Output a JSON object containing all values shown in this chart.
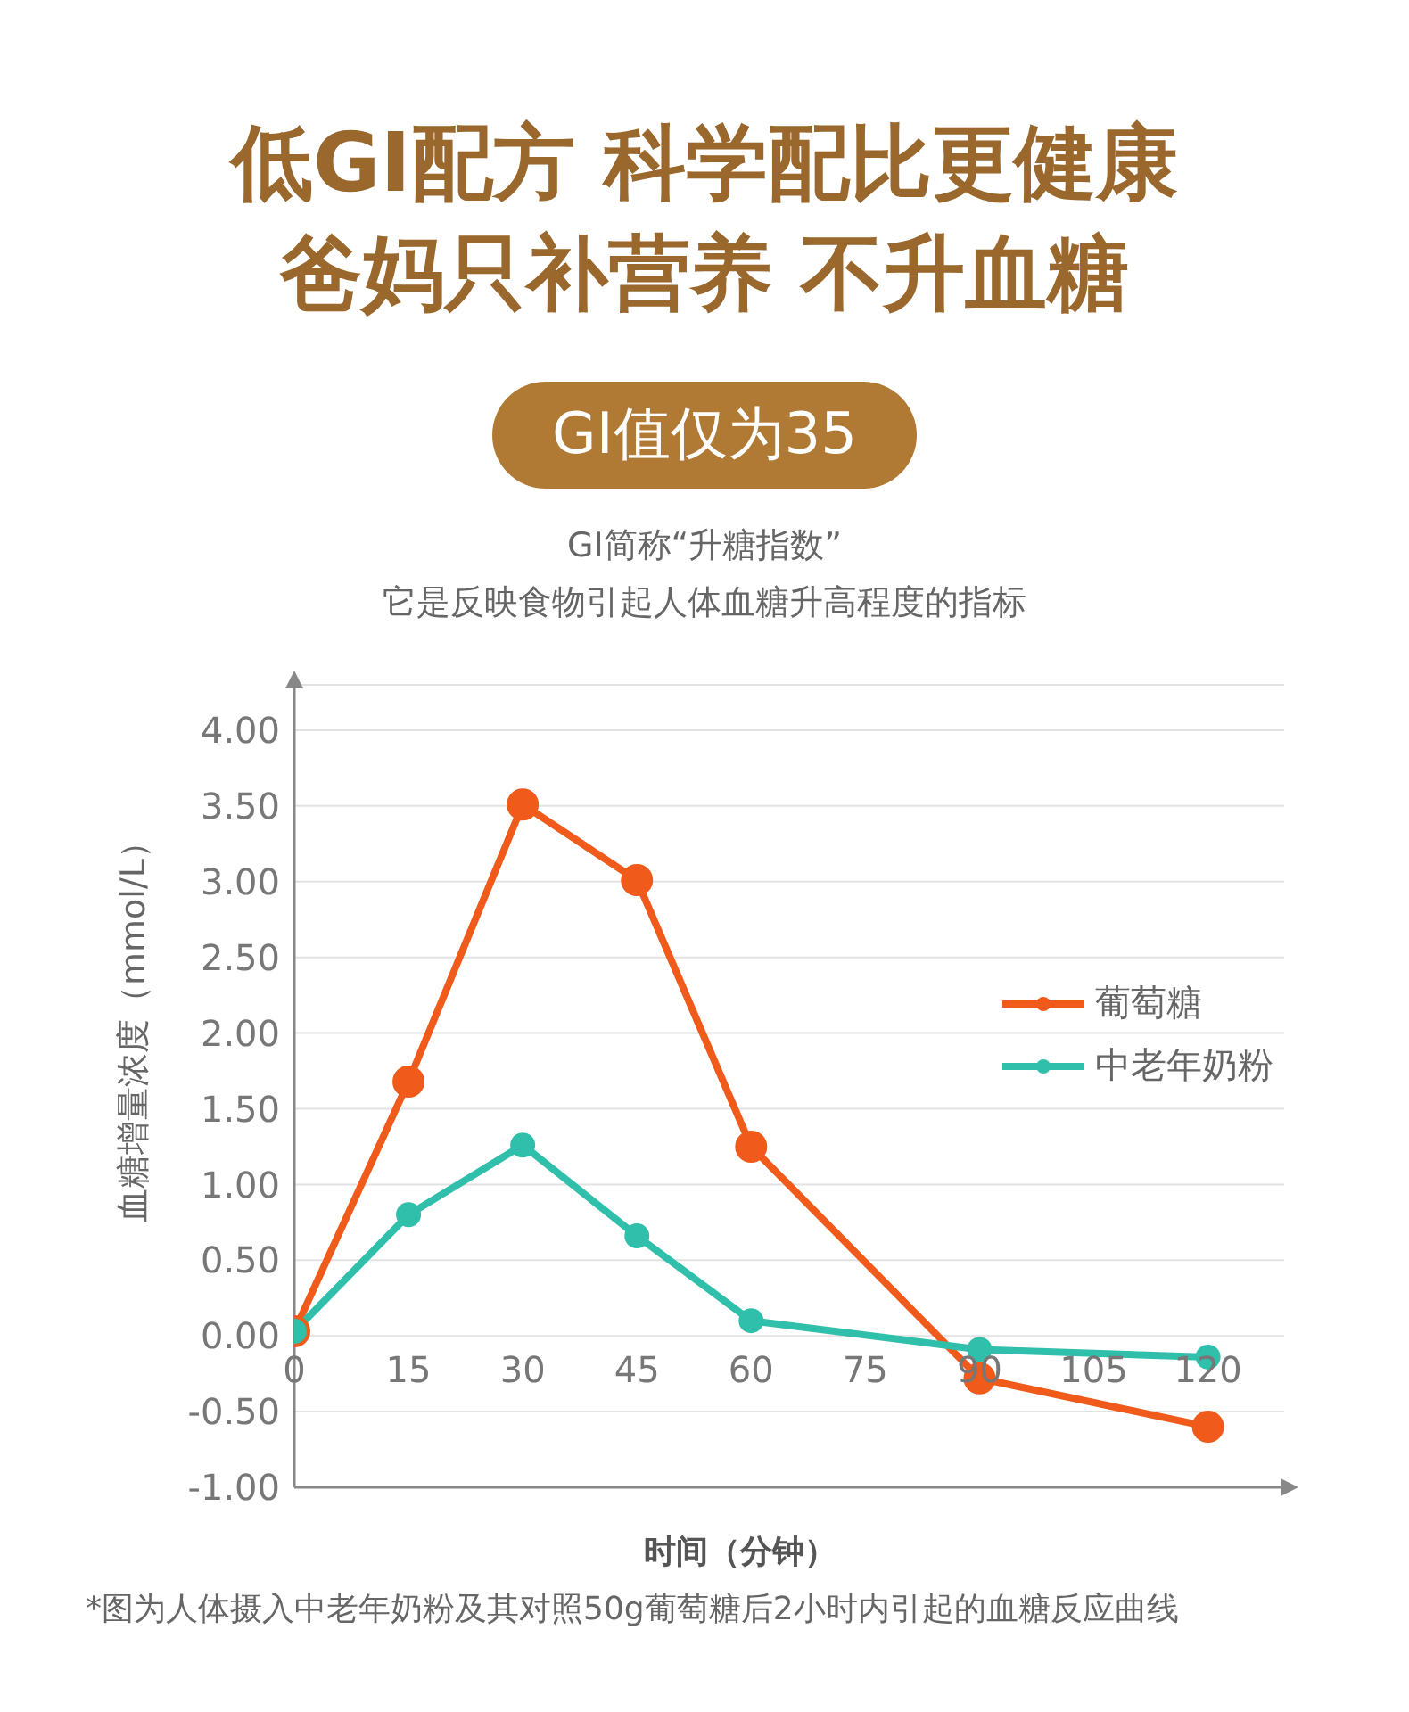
{
  "chart_data": {
    "type": "line",
    "title": "低GI配方 科学配比更健康",
    "subtitle": "GI值仅为35",
    "annotations": [
      "爸妈只补营养 不升血糖",
      "GI简称“升糖指数”",
      "它是反映食物引起人体血糖升高程度的指标",
      "*图为人体摄入中老年奶粉及其对照50g葡萄糖后2小时内引起的血糖反应曲线"
    ],
    "xlabel": "时间（分钟）",
    "ylabel": "血糖增量浓度（mmol/L）",
    "series": [
      {
        "name": "葡萄糖",
        "color": "#f05a1a",
        "x": [
          0,
          15,
          30,
          45,
          60,
          90,
          120
        ],
        "values": [
          0.03,
          1.68,
          3.51,
          3.01,
          1.25,
          -0.28,
          -0.6
        ]
      },
      {
        "name": "中老年奶粉",
        "color": "#2fbfaa",
        "x": [
          0,
          15,
          30,
          45,
          60,
          90,
          120
        ],
        "values": [
          0.03,
          0.8,
          1.26,
          0.66,
          0.1,
          -0.09,
          -0.14
        ]
      }
    ],
    "xlim": [
      0,
      130
    ],
    "xticks": [
      0,
      15,
      30,
      45,
      60,
      75,
      90,
      105,
      120
    ],
    "ylim": [
      -1,
      4.3
    ],
    "yticks": [
      {
        "value": -1,
        "label": "-1.00"
      },
      {
        "value": -0.5,
        "label": "-0.50"
      },
      {
        "value": 0,
        "label": "0.00"
      },
      {
        "value": 0.5,
        "label": "0.50"
      },
      {
        "value": 1,
        "label": "1.00"
      },
      {
        "value": 1.5,
        "label": "1.50"
      },
      {
        "value": 2,
        "label": "2.00"
      },
      {
        "value": 2.5,
        "label": "2.50"
      },
      {
        "value": 3,
        "label": "3.00"
      },
      {
        "value": 3.5,
        "label": "3.50"
      },
      {
        "value": 4,
        "label": "4.00"
      }
    ],
    "grid": "y",
    "legend": "right",
    "marker": "circle",
    "line_style": "solid"
  }
}
